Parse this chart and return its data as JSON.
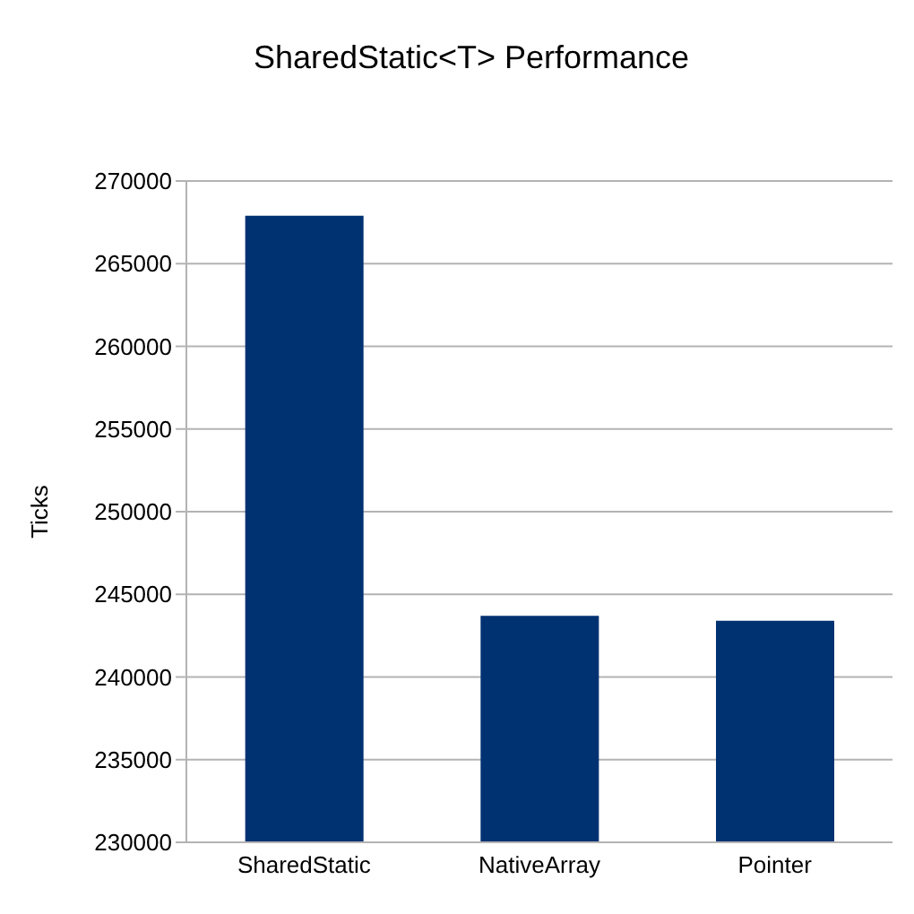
{
  "chart_data": {
    "type": "bar",
    "title": "SharedStatic<T> Performance",
    "ylabel": "Ticks",
    "categories": [
      "SharedStatic",
      "NativeArray",
      "Pointer"
    ],
    "values": [
      267900,
      243700,
      243400
    ],
    "color": "#003171",
    "ylim": [
      230000,
      270000
    ],
    "yticks": [
      230000,
      235000,
      240000,
      245000,
      250000,
      255000,
      260000,
      265000,
      270000
    ],
    "grid": "y"
  }
}
